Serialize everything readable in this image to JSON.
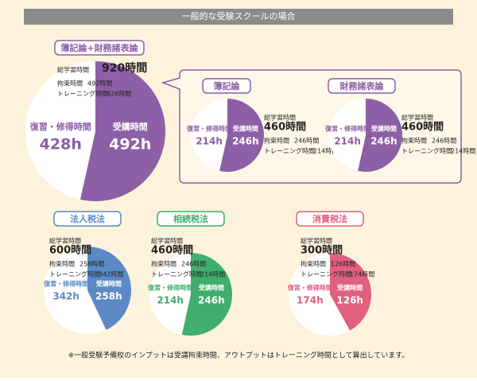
{
  "header": "一般的な受験スクールの場合",
  "footnote": "※一般受験予備校のインプットは受講拘束時間、アウトプットはトレーニング時間として算出しています。",
  "chart_data": [
    {
      "type": "pie",
      "title": "簿記論+財務諸表論",
      "categories": [
        "受講時間",
        "復習・修得時間"
      ],
      "values": [
        492,
        428
      ],
      "value_labels": [
        "492h",
        "428h"
      ],
      "colors": [
        "#8d5fa6",
        "#ffffff"
      ],
      "summary": [
        {
          "label": "総学習時間",
          "value": "920時間"
        },
        {
          "label": "拘束時間",
          "value": "492時間"
        },
        {
          "label": "トレーニング時間",
          "value": "428時間"
        }
      ]
    },
    {
      "type": "pie",
      "title": "簿記論",
      "categories": [
        "受講時間",
        "復習・修得時間"
      ],
      "values": [
        246,
        214
      ],
      "value_labels": [
        "246h",
        "214h"
      ],
      "colors": [
        "#8d5fa6",
        "#ffffff"
      ],
      "summary": [
        {
          "label": "総学習時間",
          "value": "460時間"
        },
        {
          "label": "拘束時間",
          "value": "246時間"
        },
        {
          "label": "トレーニング時間",
          "value": "214時間"
        }
      ]
    },
    {
      "type": "pie",
      "title": "財務諸表論",
      "categories": [
        "受講時間",
        "復習・修得時間"
      ],
      "values": [
        246,
        214
      ],
      "value_labels": [
        "246h",
        "214h"
      ],
      "colors": [
        "#8d5fa6",
        "#ffffff"
      ],
      "summary": [
        {
          "label": "総学習時間",
          "value": "460時間"
        },
        {
          "label": "拘束時間",
          "value": "246時間"
        },
        {
          "label": "トレーニング時間",
          "value": "214時間"
        }
      ]
    },
    {
      "type": "pie",
      "title": "法人税法",
      "categories": [
        "受講時間",
        "復習・修得時間"
      ],
      "values": [
        258,
        342
      ],
      "value_labels": [
        "258h",
        "342h"
      ],
      "colors": [
        "#5b8ac6",
        "#ffffff"
      ],
      "summary": [
        {
          "label": "総学習時間",
          "value": "600時間"
        },
        {
          "label": "拘束時間",
          "value": "258時間"
        },
        {
          "label": "トレーニング時間",
          "value": "342時間"
        }
      ]
    },
    {
      "type": "pie",
      "title": "相続税法",
      "categories": [
        "受講時間",
        "復習・修得時間"
      ],
      "values": [
        246,
        214
      ],
      "value_labels": [
        "246h",
        "214h"
      ],
      "colors": [
        "#3fae6e",
        "#ffffff"
      ],
      "summary": [
        {
          "label": "総学習時間",
          "value": "460時間"
        },
        {
          "label": "拘束時間",
          "value": "246時間"
        },
        {
          "label": "トレーニング時間",
          "value": "214時間"
        }
      ]
    },
    {
      "type": "pie",
      "title": "消費税法",
      "categories": [
        "受講時間",
        "復習・修得時間"
      ],
      "values": [
        126,
        174
      ],
      "value_labels": [
        "126h",
        "174h"
      ],
      "colors": [
        "#e0607e",
        "#ffffff"
      ],
      "summary": [
        {
          "label": "総学習時間",
          "value": "300時間"
        },
        {
          "label": "拘束時間",
          "value": "126時間"
        },
        {
          "label": "トレーニング時間",
          "value": "174時間"
        }
      ]
    }
  ]
}
